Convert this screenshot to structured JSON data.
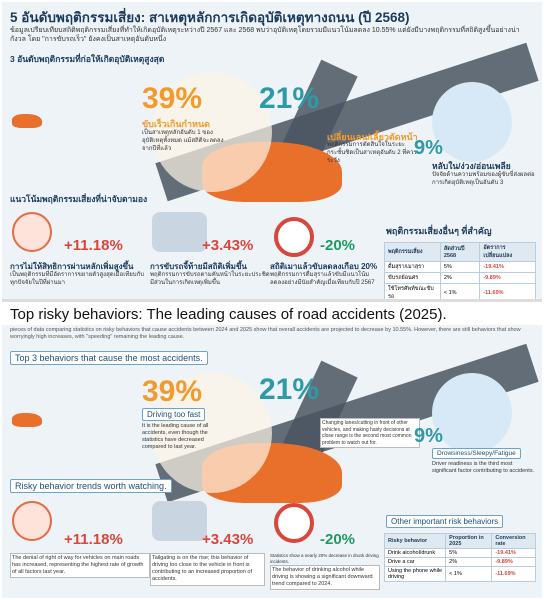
{
  "top": {
    "title": "5 อันดับพฤติกรรมเสี่ยง: สาเหตุหลักการเกิดอุบัติเหตุทางถนน (ปี 2568)",
    "intro": "ข้อมูลเปรียบเทียบสถิติพฤติกรรมเสี่ยงที่ทำให้เกิดอุบัติเหตุระหว่างปี 2567 และ 2568 พบว่าอุบัติเหตุโดยรวมมีแนวโน้มลดลง 10.55% แต่ยังมีบางพฤติกรรมที่สถิติสูงขึ้นอย่างน่ากังวล โดย \"การขับรถเร็ว\" ยังคงเป็นสาเหตุอันดับหนึ่ง",
    "section1": "3 อันดับพฤติกรรมที่ก่อให้เกิดอุบัติเหตุสูงสุด",
    "p1": "39%",
    "p1_label": "ขับเร็วเกินกำหนด",
    "p1_desc": "เป็นสาเหตุหลักอันดับ 1 ของอุบัติเหตุทั้งหมด แม้สถิติจะลดลงจากปีที่แล้ว",
    "p2": "21%",
    "p2_label": "เปลี่ยนเลน/เลี้ยวตัดหน้า",
    "p2_desc": "พฤติกรรมการตัดสินใจในระยะกระชั้นชิดเป็นสาเหตุอันดับ 2 ที่ควรระวัง",
    "p3": "9%",
    "p3_label": "หลับใน/ง่วง/อ่อนเพลีย",
    "p3_desc": "ปัจจัยด้านความพร้อมของผู้ขับขี่ส่งผลต่อการเกิดอุบัติเหตุเป็นอันดับ 3",
    "section2": "แนวโน้มพฤติกรรมเสี่ยงที่น่าจับตามอง",
    "t1": "+11.18%",
    "t1_label": "การไม่ให้สิทธิการผ่านหลักเพิ่มสูงขึ้น",
    "t1_desc": "เป็นพฤติกรรมที่มีอัตราการขยายตัวสูงสุดเมื่อเทียบกับทุกปัจจัยในปีที่ผ่านมา",
    "t2": "+3.43%",
    "t2_label": "การขับรถจี้ท้ายมีสถิติเพิ่มขึ้น",
    "t2_desc": "พฤติกรรมการขับรถตามคันหน้าในระยะประชิดมีส่วนในการเกิดเหตุเพิ่มขึ้น",
    "t3": "-20%",
    "t3_label": "สถิติเมาแล้วขับลดลงเกือบ 20%",
    "t3_desc": "พฤติกรรมการดื่มสุราแล้วขับมีแนวโน้มลดลงอย่างมีนัยสำคัญเมื่อเทียบกับปี 2567",
    "table_title": "พฤติกรรมเสี่ยงอื่นๆ ที่สำคัญ",
    "table_head": [
      "พฤติกรรมเสี่ยง",
      "สัดส่วนปี 2568",
      "อัตราการเปลี่ยนแปลง"
    ],
    "table_rows": [
      [
        "ดื่มสุรา/เมาสุรา",
        "5%",
        "-19.41%"
      ],
      [
        "ขับรถย้อนศร",
        "2%",
        "-9.89%"
      ],
      [
        "ใช้โทรศัพท์ขณะขับรถ",
        "< 1%",
        "-11.69%"
      ]
    ]
  },
  "bot": {
    "title": "Top risky behaviors: The leading causes of road accidents (2025).",
    "intro": "pieces of data comparing statistics on risky behaviors that cause accidents between 2024 and 2025 show that overall accidents are projected to decrease by 10.55%. However, there are still behaviors that show worryingly high increases, with \"speeding\" remaining the leading cause.",
    "section1": "Top 3 behaviors that cause the most accidents.",
    "p1": "39%",
    "p1_label": "Driving too fast",
    "p1_desc": "It is the leading cause of all accidents, even though the statistics have decreased compared to last year.",
    "p2": "21%",
    "p2_label": "Changing lanes/cutting in front of other vehicles, and making hasty decisions at close range is the second most common problem to watch out for.",
    "p3": "9%",
    "p3_label": "Drowsiness/Sleepy/Fatigue",
    "p3_desc": "Driver readiness is the third most significant factor contributing to accidents.",
    "section2": "Risky behavior trends worth watching.",
    "t1": "+11.18%",
    "t1_label": "The denial of right of way for vehicles on main roads has increased, representing the highest rate of growth of all factors last year.",
    "t2": "+3.43%",
    "t2_label": "Tailgating is on the rise; this behavior of driving too close to the vehicle in front is contributing to an increased proportion of accidents.",
    "t3": "-20%",
    "t3_top": "Statistics show a nearly 20% decrease in drunk driving incidents.",
    "t3_label": "The behavior of drinking alcohol while driving is showing a significant downward trend compared to 2024.",
    "table_title": "Other important risk behaviors",
    "table_head": [
      "Risky behavior",
      "Proportion in 2025",
      "Conversion rate"
    ],
    "table_rows": [
      [
        "Drink alcohol/drunk",
        "5%",
        "-19.41%"
      ],
      [
        "Drive a car",
        "2%",
        "-9.89%"
      ],
      [
        "Using the phone while driving",
        "< 1%",
        "-11.69%"
      ]
    ]
  },
  "colors": {
    "orange": "#f39a2c",
    "teal": "#2e9aa8",
    "red": "#d8463c",
    "green": "#1f9a63",
    "navy": "#1b3a5c"
  }
}
